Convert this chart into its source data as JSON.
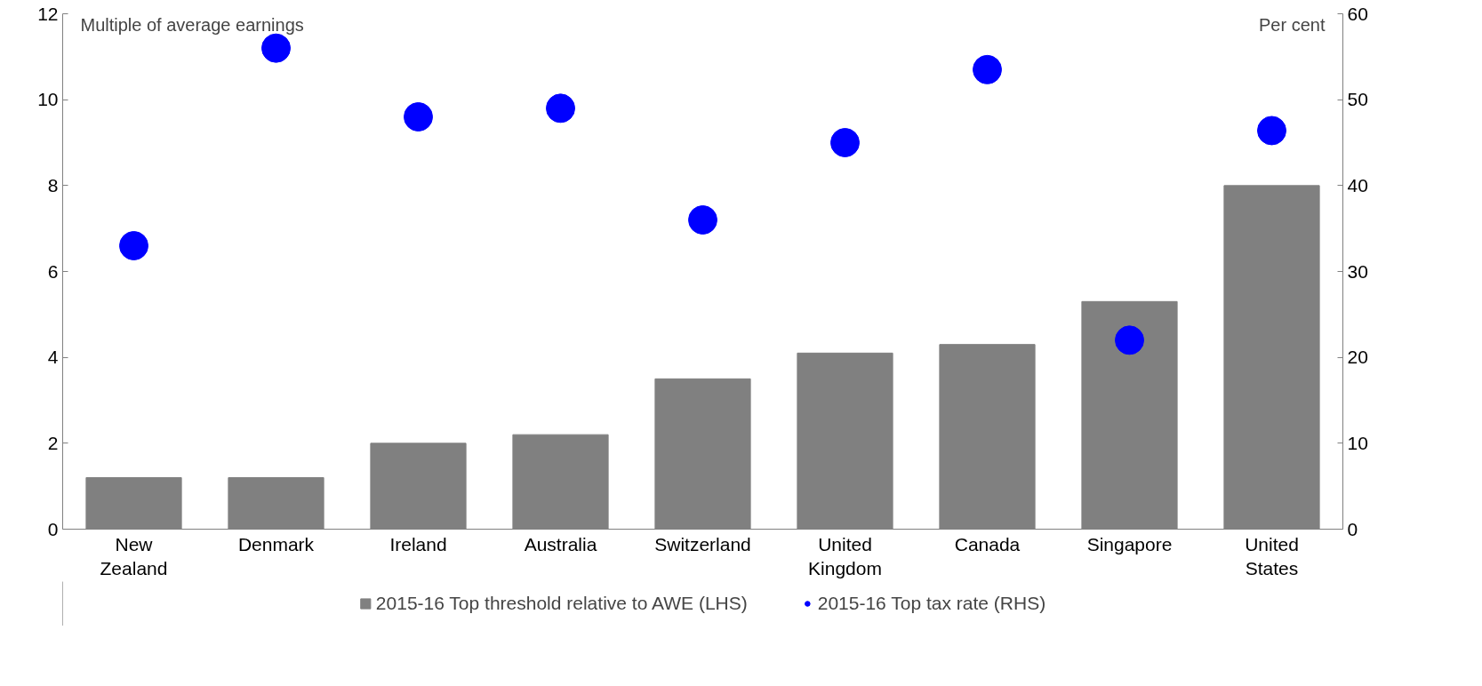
{
  "chart_data": {
    "type": "bar",
    "categories": [
      "New Zealand",
      "Denmark",
      "Ireland",
      "Australia",
      "Switzerland",
      "United Kingdom",
      "Canada",
      "Singapore",
      "United States"
    ],
    "ylabel": "Multiple of average earnings",
    "y2label": "Per cent",
    "series": [
      {
        "name": "2015-16 Top threshold relative to AWE (LHS)",
        "color": "#808080",
        "values": [
          1.2,
          1.2,
          2.0,
          2.2,
          3.5,
          4.1,
          4.3,
          5.3,
          8.0
        ]
      },
      {
        "name": "2015-16 Top tax rate (RHS)",
        "type": "scatter",
        "axis": "y2",
        "color": "#0000ff",
        "marker": "circle",
        "values": [
          33,
          56,
          48,
          49,
          36,
          45,
          53.5,
          22,
          46.4
        ]
      }
    ],
    "ylim": [
      0,
      12
    ],
    "yticks": [
      0,
      2,
      4,
      6,
      8,
      10,
      12
    ],
    "y2lim": [
      0,
      60
    ],
    "y2ticks": [
      0,
      10,
      20,
      30,
      40,
      50,
      60
    ],
    "grid": false,
    "legend": "bottom"
  }
}
